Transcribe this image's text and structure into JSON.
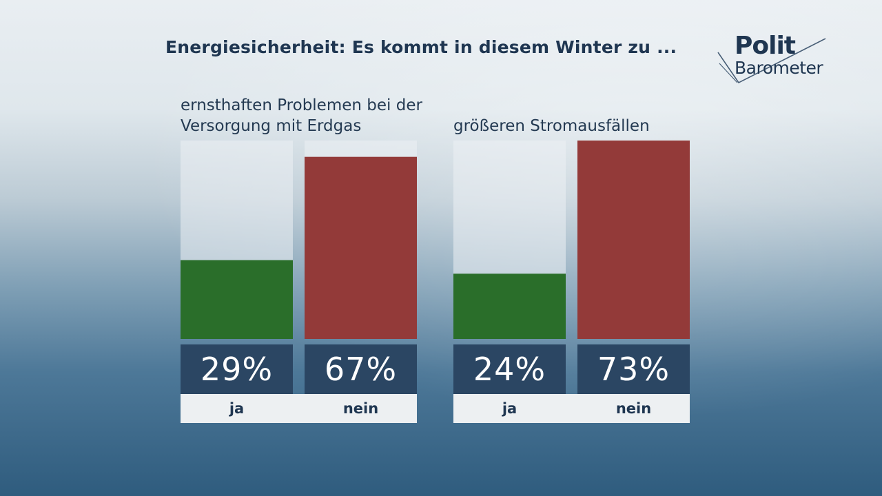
{
  "title": "Energiesicherheit: Es kommt in diesem Winter zu ...",
  "logo": {
    "line1": "Polit",
    "line2": "Barometer"
  },
  "chart_data": [
    {
      "type": "bar",
      "title": "ernsthaften Problemen bei der Versorgung mit Erdgas",
      "categories": [
        "ja",
        "nein"
      ],
      "values": [
        29,
        67
      ],
      "value_labels": [
        "29%",
        "67%"
      ],
      "colors": [
        "#2a6e2a",
        "#933a39"
      ],
      "ylim": [
        0,
        73
      ]
    },
    {
      "type": "bar",
      "title": "größeren Stromausfällen",
      "categories": [
        "ja",
        "nein"
      ],
      "values": [
        24,
        73
      ],
      "value_labels": [
        "24%",
        "73%"
      ],
      "colors": [
        "#2a6e2a",
        "#933a39"
      ],
      "ylim": [
        0,
        73
      ]
    }
  ],
  "colors": {
    "title": "#1f3651",
    "value_box": "#2b4663",
    "category_strip": "#edf0f2"
  }
}
